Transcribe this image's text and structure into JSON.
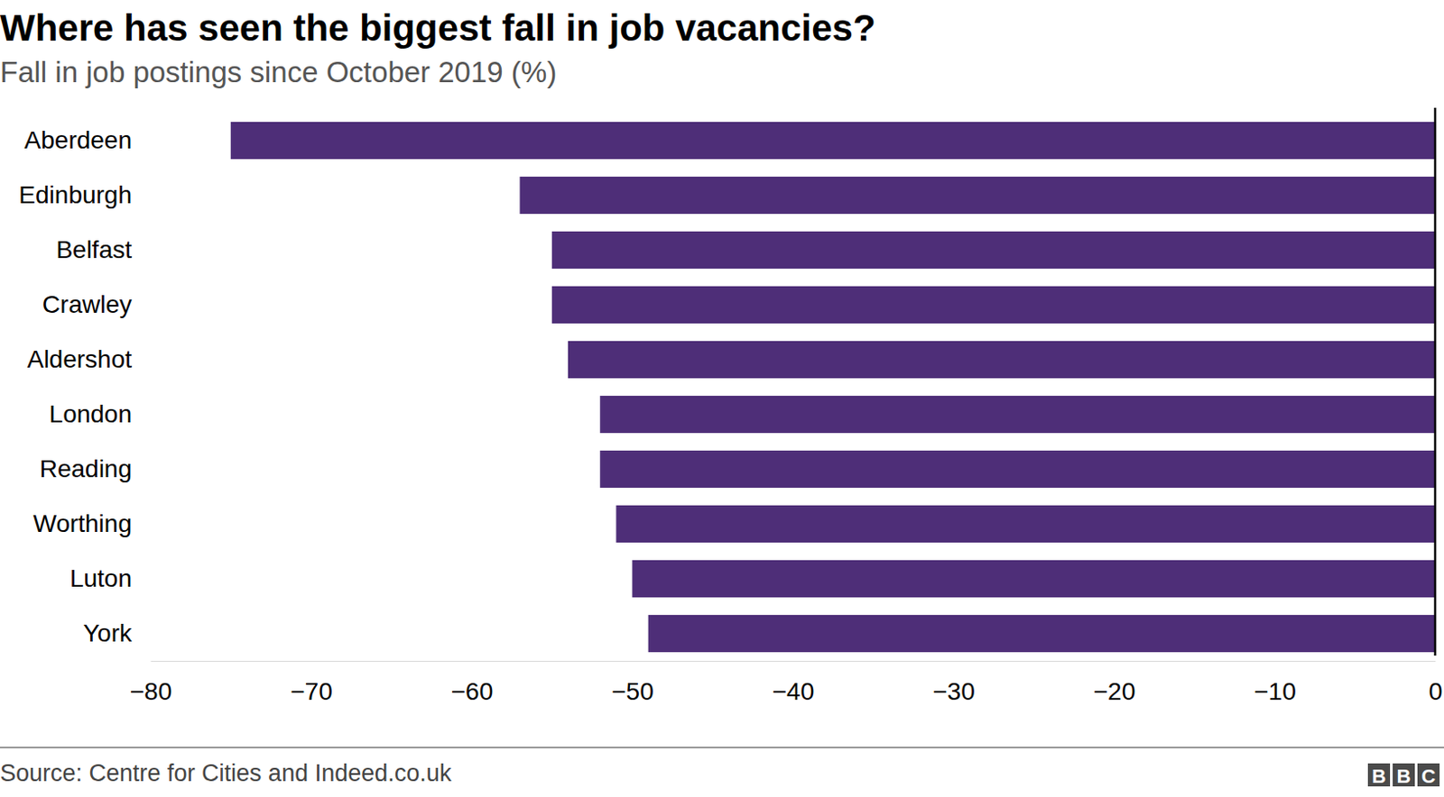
{
  "chart_data": {
    "type": "bar",
    "orientation": "horizontal",
    "title": "Where has seen the biggest fall in job vacancies?",
    "subtitle": "Fall in job postings since October 2019 (%)",
    "source": "Source: Centre for Cities and Indeed.co.uk",
    "logo": "BBC",
    "categories": [
      "Aberdeen",
      "Edinburgh",
      "Belfast",
      "Crawley",
      "Aldershot",
      "London",
      "Reading",
      "Worthing",
      "Luton",
      "York"
    ],
    "values": [
      -75,
      -57,
      -55,
      -55,
      -54,
      -52,
      -52,
      -51,
      -50,
      -49
    ],
    "color": "#4e2e78",
    "xlim": [
      -80,
      0
    ],
    "xticks": [
      {
        "value": -80,
        "label": "−80"
      },
      {
        "value": -70,
        "label": "−70"
      },
      {
        "value": -60,
        "label": "−60"
      },
      {
        "value": -50,
        "label": "−50"
      },
      {
        "value": -40,
        "label": "−40"
      },
      {
        "value": -30,
        "label": "−30"
      },
      {
        "value": -20,
        "label": "−20"
      },
      {
        "value": -10,
        "label": "−10"
      },
      0
    ],
    "grid": false
  }
}
